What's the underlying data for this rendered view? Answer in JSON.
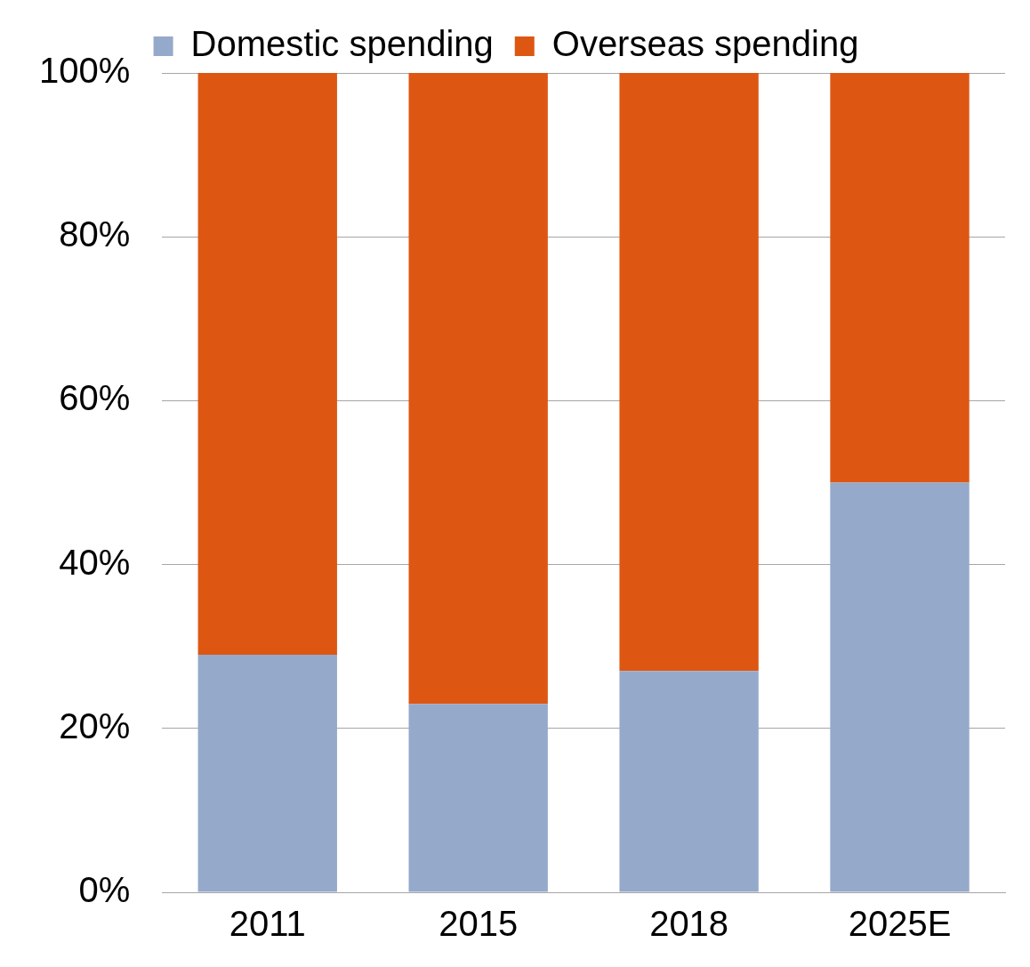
{
  "chart_data": {
    "type": "bar",
    "stacked": true,
    "categories": [
      "2011",
      "2015",
      "2018",
      "2025E"
    ],
    "series": [
      {
        "name": "Domestic spending",
        "color": "#95a9cb",
        "values": [
          29,
          23,
          27,
          50
        ]
      },
      {
        "name": "Overseas spending",
        "color": "#dd5713",
        "values": [
          71,
          77,
          73,
          50
        ]
      }
    ],
    "ylim": [
      0,
      100
    ],
    "yticks": [
      {
        "value": 0,
        "label": "0%"
      },
      {
        "value": 20,
        "label": "20%"
      },
      {
        "value": 40,
        "label": "40%"
      },
      {
        "value": 60,
        "label": "60%"
      },
      {
        "value": 80,
        "label": "80%"
      },
      {
        "value": 100,
        "label": "100%"
      }
    ],
    "grid": "y",
    "legend": "top"
  }
}
